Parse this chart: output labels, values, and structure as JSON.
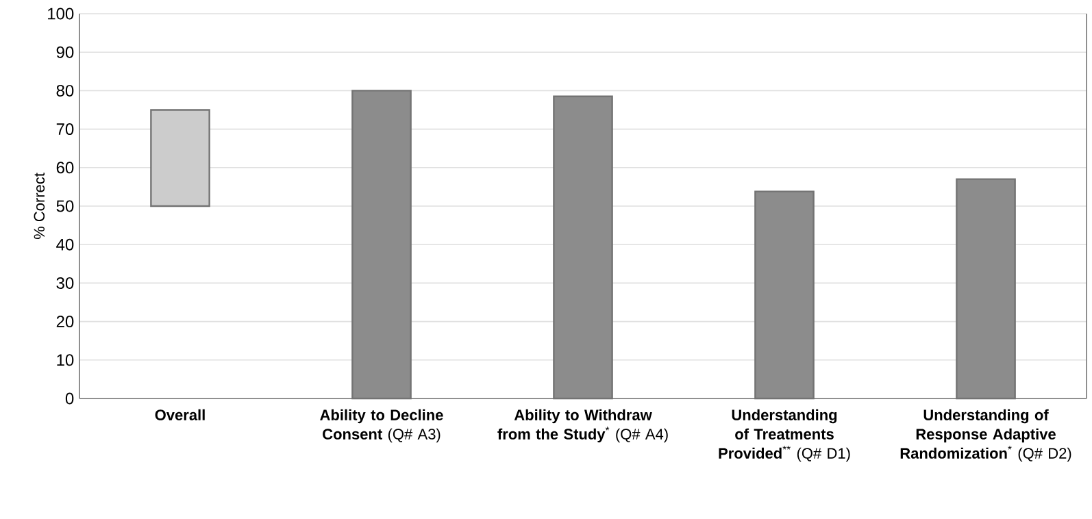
{
  "chart_data": {
    "type": "bar",
    "ylabel": "% Correct",
    "categories": [
      "**Overall**",
      "**Ability to Decline Consent** (Q# A3)",
      "**Ability to Withdraw from the Study**$^{*}$ (Q# A4)",
      "**Understanding of Treatments Provided**$^{**}$ (Q# D1)",
      "**Understanding of Response Adaptive Randomization**$^{*}$ (Q# D2)"
    ],
    "base": [
      50,
      0,
      0,
      0,
      0
    ],
    "values": [
      25,
      80,
      78.5,
      53.8,
      57
    ],
    "colors": [
      "#cccccc",
      "#8c8c8c",
      "#8c8c8c",
      "#8c8c8c",
      "#8c8c8c"
    ],
    "ylim": [
      0,
      100
    ],
    "yticks": [
      0,
      10,
      20,
      30,
      40,
      50,
      60,
      70,
      80,
      90,
      100
    ],
    "grid": "y"
  }
}
